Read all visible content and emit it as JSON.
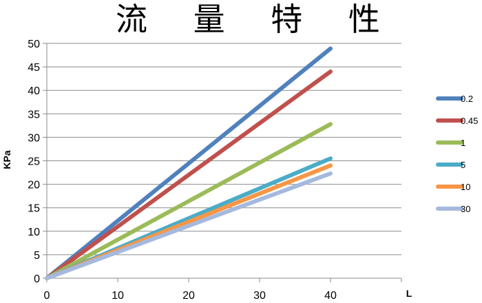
{
  "chart_data": {
    "type": "line",
    "title": "流 量 特 性",
    "xlabel": "L",
    "ylabel": "KPa",
    "xlim": [
      0,
      50
    ],
    "ylim": [
      0,
      50
    ],
    "x_ticks": [
      "0",
      "10",
      "20",
      "30",
      "40"
    ],
    "y_ticks": [
      "0",
      "5",
      "10",
      "15",
      "20",
      "25",
      "30",
      "35",
      "40",
      "45",
      "50"
    ],
    "grid": "horizontal",
    "legend_position": "right",
    "series": [
      {
        "name": "0.2",
        "color": "#4f81bd",
        "x": [
          0,
          40
        ],
        "y": [
          0,
          48.9
        ]
      },
      {
        "name": "0.45",
        "color": "#c0504d",
        "x": [
          0,
          40
        ],
        "y": [
          0,
          44.0
        ]
      },
      {
        "name": "1",
        "color": "#9bbb59",
        "x": [
          0,
          40
        ],
        "y": [
          0,
          32.8
        ]
      },
      {
        "name": "5",
        "color": "#4bacc6",
        "x": [
          0,
          40
        ],
        "y": [
          0,
          25.5
        ]
      },
      {
        "name": "10",
        "color": "#f79646",
        "x": [
          0,
          40
        ],
        "y": [
          0,
          24.0
        ]
      },
      {
        "name": "30",
        "color": "#a5b9de",
        "x": [
          0,
          40
        ],
        "y": [
          0,
          22.3
        ]
      }
    ]
  }
}
